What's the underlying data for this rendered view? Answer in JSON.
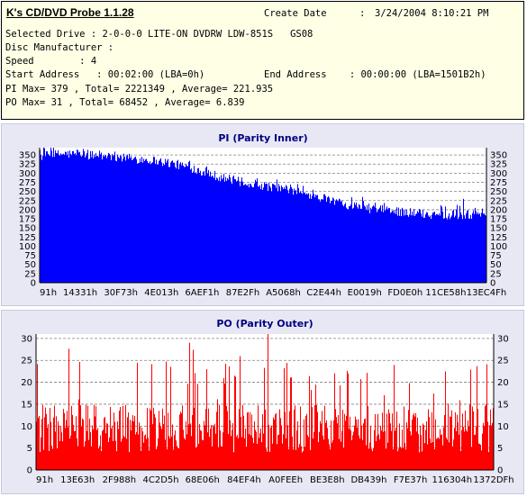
{
  "app": {
    "title": "K's CD/DVD Probe 1.1.28"
  },
  "info": {
    "create_date_label": "Create Date",
    "create_date_sep": ":",
    "create_date_value": "3/24/2004 8:10:21 PM",
    "selected_drive": "Selected Drive : 2-0-0-0 LITE-ON DVDRW LDW-851S   GS08",
    "disc_manufacturer": "Disc Manufacturer :",
    "speed": "Speed        : 4",
    "start_address": "Start Address   : 00:02:00 (LBA=0h)",
    "end_address": "End Address    : 00:00:00 (LBA=1501B2h)",
    "pi_summary": "PI Max= 379 , Total= 2221349 , Average= 221.935",
    "po_summary": "PO Max= 31 , Total= 68452 , Average= 6.839"
  },
  "colors": {
    "pi_fill": "#0000ff",
    "po_fill": "#ff0000",
    "plot_bg": "#ffffff",
    "panel_bg": "#e8e8f5",
    "title_color": "#000080"
  },
  "chart_data": [
    {
      "type": "area",
      "title": "PI (Parity Inner)",
      "xlabel": "",
      "ylabel": "",
      "x_tick_labels": [
        "91h",
        "14331h",
        "30F73h",
        "4E013h",
        "6AEF1h",
        "87E2Fh",
        "A5068h",
        "C2E44h",
        "E0019h",
        "FD0E0h",
        "11CE58h",
        "13EC4Fh"
      ],
      "ylim": [
        0,
        370
      ],
      "y_ticks": [
        0,
        25,
        50,
        75,
        100,
        125,
        150,
        175,
        200,
        225,
        250,
        275,
        300,
        325,
        350
      ],
      "grid": true,
      "dual_y_axis": true,
      "series": [
        {
          "x_fraction": [
            0.0,
            0.05,
            0.1,
            0.15,
            0.2,
            0.25,
            0.3,
            0.35,
            0.4,
            0.45,
            0.5,
            0.55,
            0.6,
            0.65,
            0.7,
            0.75,
            0.8,
            0.85,
            0.9,
            0.95,
            1.0
          ],
          "base": [
            345,
            352,
            350,
            345,
            340,
            335,
            325,
            310,
            290,
            275,
            265,
            255,
            240,
            225,
            210,
            200,
            195,
            188,
            185,
            185,
            190
          ],
          "peak": [
            379,
            375,
            372,
            370,
            368,
            362,
            350,
            340,
            320,
            300,
            290,
            285,
            270,
            260,
            245,
            230,
            222,
            215,
            215,
            232,
            210
          ]
        }
      ]
    },
    {
      "type": "bar",
      "title": "PO (Parity Outer)",
      "xlabel": "",
      "ylabel": "",
      "x_tick_labels": [
        "91h",
        "13E63h",
        "2F988h",
        "4C2D5h",
        "68E06h",
        "84EF4h",
        "A0FEEh",
        "BE3E8h",
        "DB439h",
        "F7E37h",
        "116304h",
        "1372DFh"
      ],
      "ylim": [
        0,
        31
      ],
      "y_ticks": [
        0,
        5,
        10,
        15,
        20,
        25,
        30
      ],
      "grid": true,
      "dual_y_axis": true,
      "series": [
        {
          "typical_range": [
            4,
            15
          ],
          "max": 31
        }
      ]
    }
  ]
}
